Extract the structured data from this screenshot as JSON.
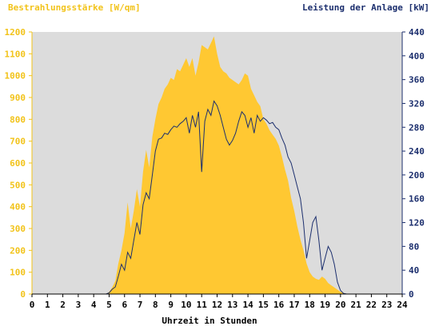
{
  "chart_data": {
    "type": "area",
    "left_axis_title": "Bestrahlungsstärke [W/qm]",
    "right_axis_title": "Leistung der Anlage [kW]",
    "xlabel": "Uhrzeit in Stunden",
    "x_ticks": [
      "0",
      "1",
      "2",
      "3",
      "4",
      "5",
      "6",
      "7",
      "8",
      "9",
      "10",
      "11",
      "12",
      "13",
      "14",
      "15",
      "16",
      "17",
      "18",
      "19",
      "20",
      "21",
      "22",
      "23",
      "24"
    ],
    "y_left_ticks": [
      "0",
      "100",
      "200",
      "300",
      "400",
      "500",
      "600",
      "700",
      "800",
      "900",
      "1000",
      "1100",
      "1200"
    ],
    "y_right_ticks": [
      "0",
      "40",
      "80",
      "120",
      "160",
      "200",
      "240",
      "280",
      "320",
      "360",
      "400",
      "440"
    ],
    "xlim": [
      0,
      24
    ],
    "ylim_left": [
      0,
      1200
    ],
    "ylim_right": [
      0,
      440
    ],
    "grid": false,
    "colors": {
      "plot_background": "#dcdcdc",
      "irradiance_fill": "#ffc832",
      "power_line": "#1c2f6e",
      "left_axis_text": "#f2c31a",
      "right_axis_text": "#1c2f6e"
    },
    "series": [
      {
        "axis": "left",
        "style": "filled-area",
        "points": [
          [
            0,
            0
          ],
          [
            4.8,
            0
          ],
          [
            5.0,
            10
          ],
          [
            5.2,
            30
          ],
          [
            5.4,
            60
          ],
          [
            5.6,
            140
          ],
          [
            5.8,
            200
          ],
          [
            6.0,
            280
          ],
          [
            6.2,
            420
          ],
          [
            6.4,
            300
          ],
          [
            6.6,
            380
          ],
          [
            6.8,
            480
          ],
          [
            7.0,
            400
          ],
          [
            7.2,
            560
          ],
          [
            7.4,
            660
          ],
          [
            7.6,
            580
          ],
          [
            7.8,
            720
          ],
          [
            8.0,
            800
          ],
          [
            8.2,
            870
          ],
          [
            8.4,
            900
          ],
          [
            8.6,
            940
          ],
          [
            8.8,
            960
          ],
          [
            9.0,
            990
          ],
          [
            9.2,
            980
          ],
          [
            9.4,
            1030
          ],
          [
            9.6,
            1020
          ],
          [
            9.8,
            1050
          ],
          [
            10.0,
            1080
          ],
          [
            10.2,
            1040
          ],
          [
            10.4,
            1080
          ],
          [
            10.6,
            1000
          ],
          [
            10.8,
            1060
          ],
          [
            11.0,
            1140
          ],
          [
            11.2,
            1130
          ],
          [
            11.4,
            1120
          ],
          [
            11.6,
            1150
          ],
          [
            11.8,
            1180
          ],
          [
            12.0,
            1100
          ],
          [
            12.2,
            1040
          ],
          [
            12.4,
            1020
          ],
          [
            12.6,
            1010
          ],
          [
            12.8,
            990
          ],
          [
            13.0,
            980
          ],
          [
            13.2,
            970
          ],
          [
            13.4,
            960
          ],
          [
            13.6,
            980
          ],
          [
            13.8,
            1010
          ],
          [
            14.0,
            1000
          ],
          [
            14.2,
            940
          ],
          [
            14.4,
            910
          ],
          [
            14.6,
            880
          ],
          [
            14.8,
            860
          ],
          [
            15.0,
            800
          ],
          [
            15.2,
            780
          ],
          [
            15.4,
            750
          ],
          [
            15.6,
            730
          ],
          [
            15.8,
            710
          ],
          [
            16.0,
            680
          ],
          [
            16.2,
            630
          ],
          [
            16.4,
            570
          ],
          [
            16.6,
            520
          ],
          [
            16.8,
            440
          ],
          [
            17.0,
            380
          ],
          [
            17.2,
            310
          ],
          [
            17.4,
            250
          ],
          [
            17.6,
            200
          ],
          [
            17.8,
            140
          ],
          [
            18.0,
            100
          ],
          [
            18.2,
            80
          ],
          [
            18.4,
            70
          ],
          [
            18.6,
            65
          ],
          [
            18.8,
            80
          ],
          [
            19.0,
            70
          ],
          [
            19.2,
            50
          ],
          [
            19.4,
            40
          ],
          [
            19.6,
            30
          ],
          [
            19.8,
            20
          ],
          [
            20.0,
            10
          ],
          [
            20.2,
            5
          ],
          [
            20.4,
            0
          ],
          [
            24,
            0
          ]
        ]
      },
      {
        "axis": "right",
        "style": "line",
        "points": [
          [
            0,
            0
          ],
          [
            4.8,
            0
          ],
          [
            5.0,
            2
          ],
          [
            5.2,
            8
          ],
          [
            5.4,
            12
          ],
          [
            5.6,
            30
          ],
          [
            5.8,
            50
          ],
          [
            6.0,
            40
          ],
          [
            6.2,
            70
          ],
          [
            6.4,
            60
          ],
          [
            6.6,
            90
          ],
          [
            6.8,
            120
          ],
          [
            7.0,
            100
          ],
          [
            7.2,
            150
          ],
          [
            7.4,
            170
          ],
          [
            7.6,
            160
          ],
          [
            7.8,
            200
          ],
          [
            8.0,
            240
          ],
          [
            8.2,
            260
          ],
          [
            8.4,
            262
          ],
          [
            8.6,
            270
          ],
          [
            8.8,
            268
          ],
          [
            9.0,
            276
          ],
          [
            9.2,
            282
          ],
          [
            9.4,
            280
          ],
          [
            9.6,
            286
          ],
          [
            9.8,
            290
          ],
          [
            10.0,
            296
          ],
          [
            10.2,
            270
          ],
          [
            10.4,
            300
          ],
          [
            10.6,
            280
          ],
          [
            10.8,
            306
          ],
          [
            11.0,
            205
          ],
          [
            11.2,
            290
          ],
          [
            11.4,
            310
          ],
          [
            11.6,
            300
          ],
          [
            11.8,
            324
          ],
          [
            12.0,
            316
          ],
          [
            12.2,
            300
          ],
          [
            12.4,
            280
          ],
          [
            12.6,
            260
          ],
          [
            12.8,
            250
          ],
          [
            13.0,
            258
          ],
          [
            13.2,
            270
          ],
          [
            13.4,
            290
          ],
          [
            13.6,
            306
          ],
          [
            13.8,
            300
          ],
          [
            14.0,
            280
          ],
          [
            14.2,
            296
          ],
          [
            14.4,
            270
          ],
          [
            14.6,
            300
          ],
          [
            14.8,
            290
          ],
          [
            15.0,
            296
          ],
          [
            15.2,
            292
          ],
          [
            15.4,
            286
          ],
          [
            15.6,
            288
          ],
          [
            15.8,
            280
          ],
          [
            16.0,
            276
          ],
          [
            16.2,
            262
          ],
          [
            16.4,
            250
          ],
          [
            16.6,
            230
          ],
          [
            16.8,
            220
          ],
          [
            17.0,
            200
          ],
          [
            17.2,
            180
          ],
          [
            17.4,
            160
          ],
          [
            17.6,
            120
          ],
          [
            17.8,
            60
          ],
          [
            18.0,
            90
          ],
          [
            18.2,
            120
          ],
          [
            18.4,
            130
          ],
          [
            18.6,
            90
          ],
          [
            18.8,
            40
          ],
          [
            19.0,
            60
          ],
          [
            19.2,
            80
          ],
          [
            19.4,
            70
          ],
          [
            19.6,
            50
          ],
          [
            19.8,
            20
          ],
          [
            20.0,
            6
          ],
          [
            20.2,
            1
          ],
          [
            20.4,
            0
          ],
          [
            24,
            0
          ]
        ]
      }
    ]
  }
}
